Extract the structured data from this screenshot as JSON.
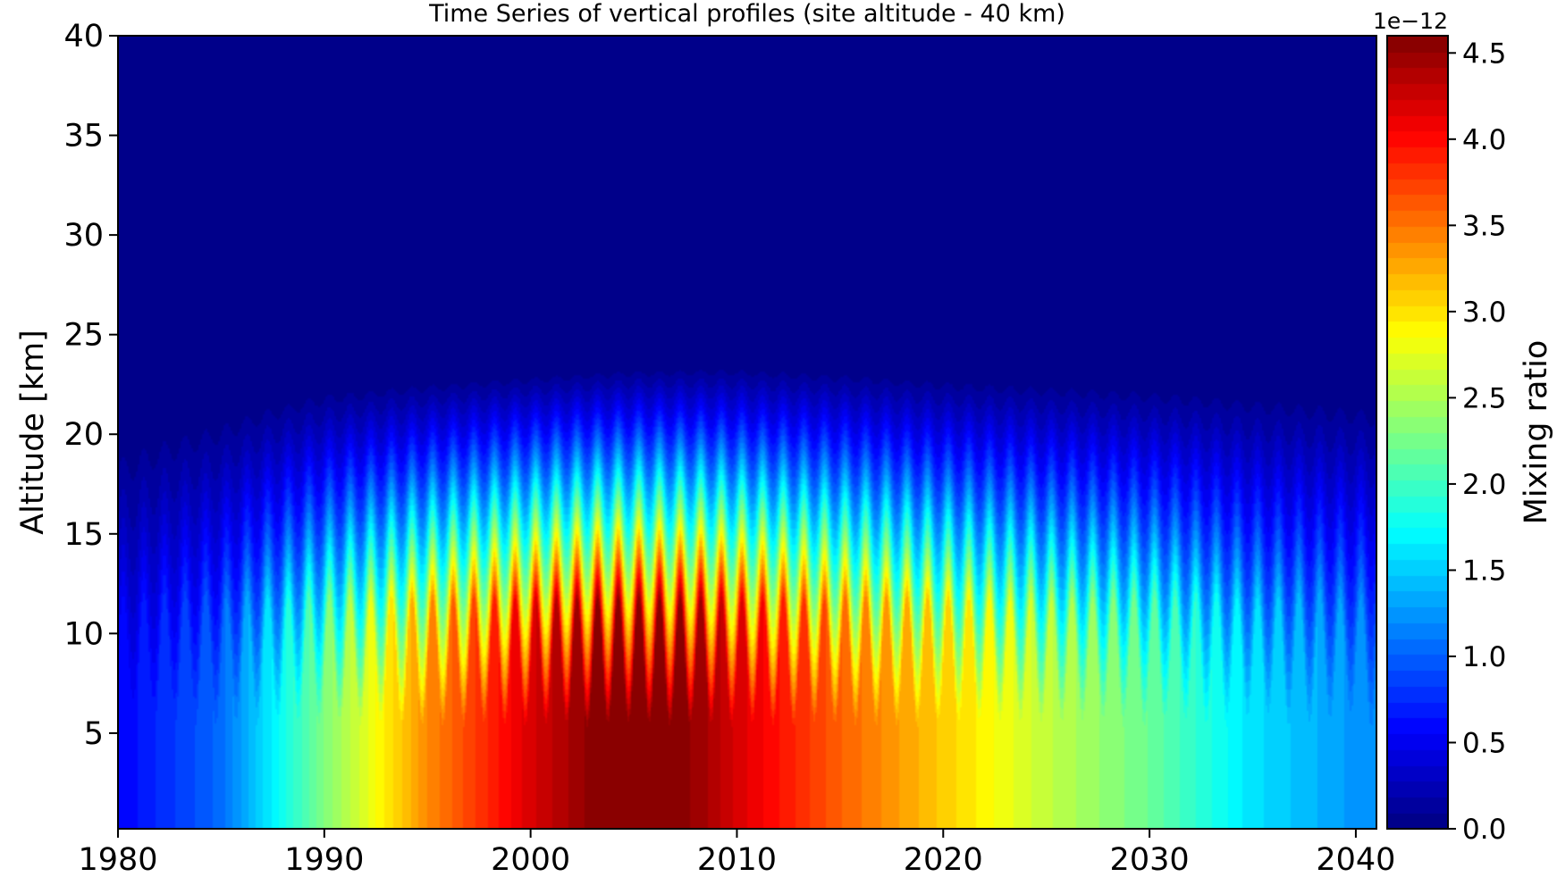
{
  "chart_data": {
    "type": "heatmap",
    "title": "Time Series of vertical profiles (site altitude - 40 km)",
    "xlabel": "",
    "ylabel": "Altitude [km]",
    "xlim": [
      1980,
      2041
    ],
    "ylim": [
      0.2,
      40
    ],
    "xticks": [
      "1980",
      "1990",
      "2000",
      "2010",
      "2020",
      "2030",
      "2040"
    ],
    "yticks": [
      "5",
      "10",
      "15",
      "20",
      "25",
      "30",
      "35",
      "40"
    ],
    "colorbar": {
      "label": "Mixing ratio",
      "offset_text": "1e−12",
      "range": [
        0.0,
        4.6
      ],
      "ticks": [
        "0.0",
        "0.5",
        "1.0",
        "1.5",
        "2.0",
        "2.5",
        "3.0",
        "3.5",
        "4.0",
        "4.5"
      ],
      "colormap": "jet",
      "levels": 50
    },
    "surface_series": {
      "name": "",
      "x": [
        1980,
        1985,
        1990,
        1995,
        2000,
        2003,
        2005,
        2008,
        2010,
        2015,
        2020,
        2025,
        2030,
        2035,
        2040.7
      ],
      "values": [
        0.55,
        1.05,
        2.3,
        3.4,
        4.2,
        4.55,
        4.6,
        4.5,
        4.2,
        3.6,
        3.1,
        2.6,
        2.2,
        1.6,
        1.2
      ]
    },
    "tropopause_km": {
      "x": [
        1980,
        1990,
        2000,
        2005,
        2010,
        2015,
        2020,
        2030,
        2040.7
      ],
      "values": [
        21.0,
        22.8,
        23.4,
        23.7,
        23.8,
        23.6,
        23.3,
        23.0,
        22.6
      ]
    },
    "seasonal_cycle_period_years": 1
  }
}
